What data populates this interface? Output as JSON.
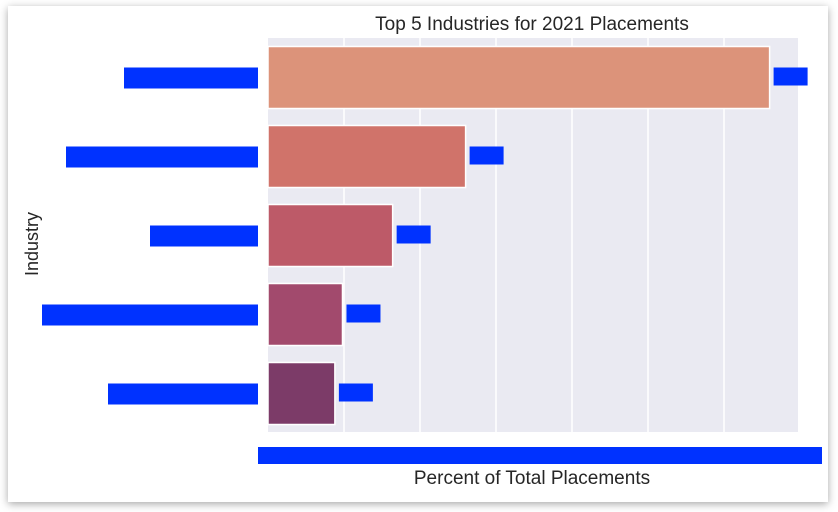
{
  "chart_data": {
    "type": "bar",
    "orientation": "horizontal",
    "title": "Top 5 Industries for 2021 Placements",
    "xlabel": "Percent of Total Placements",
    "ylabel": "Industry",
    "categories": [
      "",
      "",
      "",
      "",
      ""
    ],
    "values": [
      33,
      13,
      8.2,
      4.9,
      4.4
    ],
    "value_labels": [
      "",
      "",
      "",
      "",
      ""
    ],
    "bar_colors": [
      "#dc937a",
      "#d0736a",
      "#bd5a68",
      "#a24a6d",
      "#7c3b68"
    ],
    "xlim": [
      0,
      35
    ],
    "grid": true,
    "background": "#eaeaf2",
    "redaction_color": "#0032ff"
  }
}
